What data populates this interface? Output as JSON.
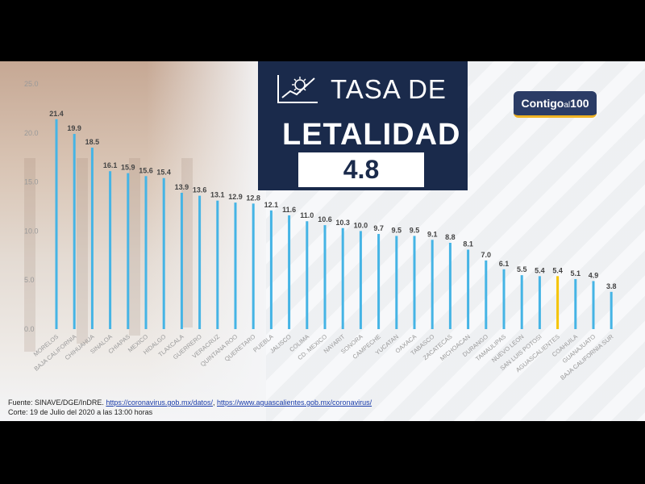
{
  "header": {
    "title_line1": "TASA DE",
    "title_line2": "LETALIDAD",
    "national_rate": "4.8",
    "logo_main": "Contigo",
    "logo_small": "al",
    "logo_num": "100"
  },
  "footer": {
    "source_prefix": "Fuente: SINAVE/DGE/InDRE. ",
    "source_link1": "https://coronavirus.gob.mx/datos/",
    "source_sep": ", ",
    "source_link2": "https://www.aguascalientes.gob.mx/coronavirus/",
    "cutoff": "Corte: 19 de Julio del 2020 a las 13:00 horas"
  },
  "colors": {
    "bar": "#45b4e5",
    "highlight": "#f5c400",
    "panel": "#1a2a4b",
    "axis_text": "#999999",
    "label_text": "#444444"
  },
  "chart_data": {
    "type": "bar",
    "ylim": [
      0,
      25
    ],
    "yticks": [
      "0.0",
      "5.0",
      "10.0",
      "15.0",
      "20.0",
      "25.0"
    ],
    "highlight": "AGUASCALIENTES",
    "categories": [
      "MORELOS",
      "BAJA CALIFORNIA",
      "CHIHUAHUA",
      "SINALOA",
      "CHIAPAS",
      "MEXICO",
      "HIDALGO",
      "TLAXCALA",
      "GUERRERO",
      "VERACRUZ",
      "QUINTANA ROO",
      "QUERETARO",
      "PUEBLA",
      "JALISCO",
      "COLIMA",
      "CD. MEXICO",
      "NAYARIT",
      "SONORA",
      "CAMPECHE",
      "YUCATAN",
      "OAXACA",
      "TABASCO",
      "ZACATECAS",
      "MICHOACAN",
      "DURANGO",
      "TAMAULIPAS",
      "NUEVO LEON",
      "SAN LUIS POTOSI",
      "AGUASCALIENTES",
      "COAHUILA",
      "GUANAJUATO",
      "BAJA CALIFORNIA SUR"
    ],
    "values": [
      21.4,
      19.9,
      18.5,
      16.1,
      15.9,
      15.6,
      15.4,
      13.9,
      13.6,
      13.1,
      12.9,
      12.8,
      12.1,
      11.6,
      11.0,
      10.6,
      10.3,
      10.0,
      9.7,
      9.5,
      9.5,
      9.1,
      8.8,
      8.1,
      7.0,
      6.1,
      5.5,
      5.4,
      5.4,
      5.1,
      4.9,
      3.8
    ],
    "value_labels": [
      "21.4",
      "19.9",
      "18.5",
      "16.1",
      "15.9",
      "15.6",
      "15.4",
      "13.9",
      "13.6",
      "13.1",
      "12.9",
      "12.8",
      "12.1",
      "11.6",
      "11.0",
      "10.6",
      "10.3",
      "10.0",
      "9.7",
      "9.5",
      "9.5",
      "9.1",
      "8.8",
      "8.1",
      "7.0",
      "6.1",
      "5.5",
      "5.4",
      "5.4",
      "5.1",
      "4.9",
      "3.8"
    ]
  }
}
